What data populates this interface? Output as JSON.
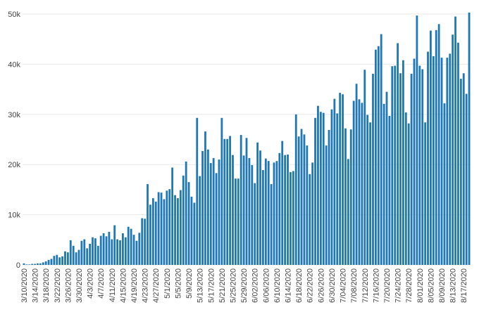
{
  "chart_data": {
    "type": "bar",
    "categories": [
      "3/10/2020",
      null,
      null,
      null,
      "3/14/2020",
      null,
      null,
      null,
      "3/18/2020",
      null,
      null,
      null,
      "3/22/2020",
      null,
      null,
      null,
      "3/26/2020",
      null,
      null,
      null,
      "3/30/2020",
      null,
      null,
      null,
      "4/3/2020",
      null,
      null,
      null,
      "4/7/2020",
      null,
      null,
      null,
      "4/11/2020",
      null,
      null,
      null,
      "4/15/2020",
      null,
      null,
      null,
      "4/19/2020",
      null,
      null,
      null,
      "4/23/2020",
      null,
      null,
      null,
      "4/27/2020",
      null,
      null,
      null,
      "5/1/2020",
      null,
      null,
      null,
      "5/5/2020",
      null,
      null,
      null,
      "5/9/2020",
      null,
      null,
      null,
      "5/13/2020",
      null,
      null,
      null,
      "5/17/2020",
      null,
      null,
      null,
      "5/21/2020",
      null,
      null,
      null,
      "5/25/2020",
      null,
      null,
      null,
      "5/29/2020",
      null,
      null,
      null,
      "6/02/2020",
      null,
      null,
      null,
      "6/06/2020",
      null,
      null,
      null,
      "6/10/2020",
      null,
      null,
      null,
      "6/14/2020",
      null,
      null,
      null,
      "6/18/2020",
      null,
      null,
      null,
      "6/22/2020",
      null,
      null,
      null,
      "6/26/2020",
      null,
      null,
      null,
      "6/30/2020",
      null,
      null,
      null,
      "7/04/2020",
      null,
      null,
      null,
      "7/08/2020",
      null,
      null,
      null,
      "7/12/2020",
      null,
      null,
      null,
      "7/16/2020",
      null,
      null,
      null,
      "7/20/2020",
      null,
      null,
      null,
      "7/24/2020",
      null,
      null,
      null,
      "7/28/2020",
      null,
      null,
      null,
      "8/01/2020",
      null,
      null,
      null,
      "8/05/2020",
      null,
      null,
      null,
      "8/09/2020",
      null,
      null,
      null,
      "8/13/2020",
      null,
      null,
      null,
      "8/17/2020",
      null,
      null
    ],
    "values": [
      300,
      100,
      100,
      200,
      200,
      300,
      300,
      500,
      700,
      1000,
      1200,
      1800,
      2000,
      1500,
      1700,
      2700,
      2500,
      4900,
      3800,
      2500,
      3000,
      4800,
      5100,
      3300,
      4200,
      5500,
      5300,
      3800,
      5800,
      6300,
      5700,
      6600,
      5100,
      7900,
      5100,
      4900,
      6300,
      5500,
      7600,
      7200,
      6000,
      4800,
      6400,
      9300,
      9200,
      16100,
      12000,
      13300,
      12600,
      14500,
      14400,
      13100,
      14800,
      15100,
      19400,
      13900,
      13300,
      14900,
      17800,
      20600,
      16500,
      13600,
      12400,
      29300,
      17700,
      22700,
      26600,
      23000,
      20300,
      21300,
      18300,
      21000,
      29300,
      25100,
      25100,
      25700,
      21900,
      17200,
      17200,
      25900,
      21800,
      25300,
      21300,
      19900,
      16300,
      24400,
      22800,
      18900,
      21200,
      20700,
      16100,
      20400,
      20700,
      22300,
      24700,
      21900,
      22000,
      18500,
      18700,
      30000,
      25600,
      27100,
      26000,
      23800,
      18100,
      20400,
      29300,
      31700,
      30500,
      30300,
      23800,
      26900,
      31000,
      33100,
      30200,
      34300,
      34000,
      27200,
      21100,
      27000,
      32700,
      36100,
      33000,
      32300,
      38900,
      29900,
      28400,
      38100,
      42900,
      43600,
      46000,
      32100,
      34500,
      29700,
      39600,
      39700,
      44200,
      38200,
      40800,
      30400,
      28200,
      38100,
      41100,
      49700,
      39700,
      39000,
      28400,
      42500,
      46700,
      41600,
      46800,
      48000,
      41300,
      32200,
      41300,
      42100,
      45900,
      49500,
      44300,
      37100,
      38200,
      34100,
      50300
    ],
    "color": "#1f77b4",
    "ylim": [
      0,
      52100
    ],
    "yticks": [
      0,
      {
        "value": 10000,
        "label": "10k"
      },
      {
        "value": 20000,
        "label": "20k"
      },
      {
        "value": 30000,
        "label": "30k"
      },
      {
        "value": 40000,
        "label": "40k"
      },
      {
        "value": 50000,
        "label": "50k"
      }
    ],
    "grid": true
  }
}
